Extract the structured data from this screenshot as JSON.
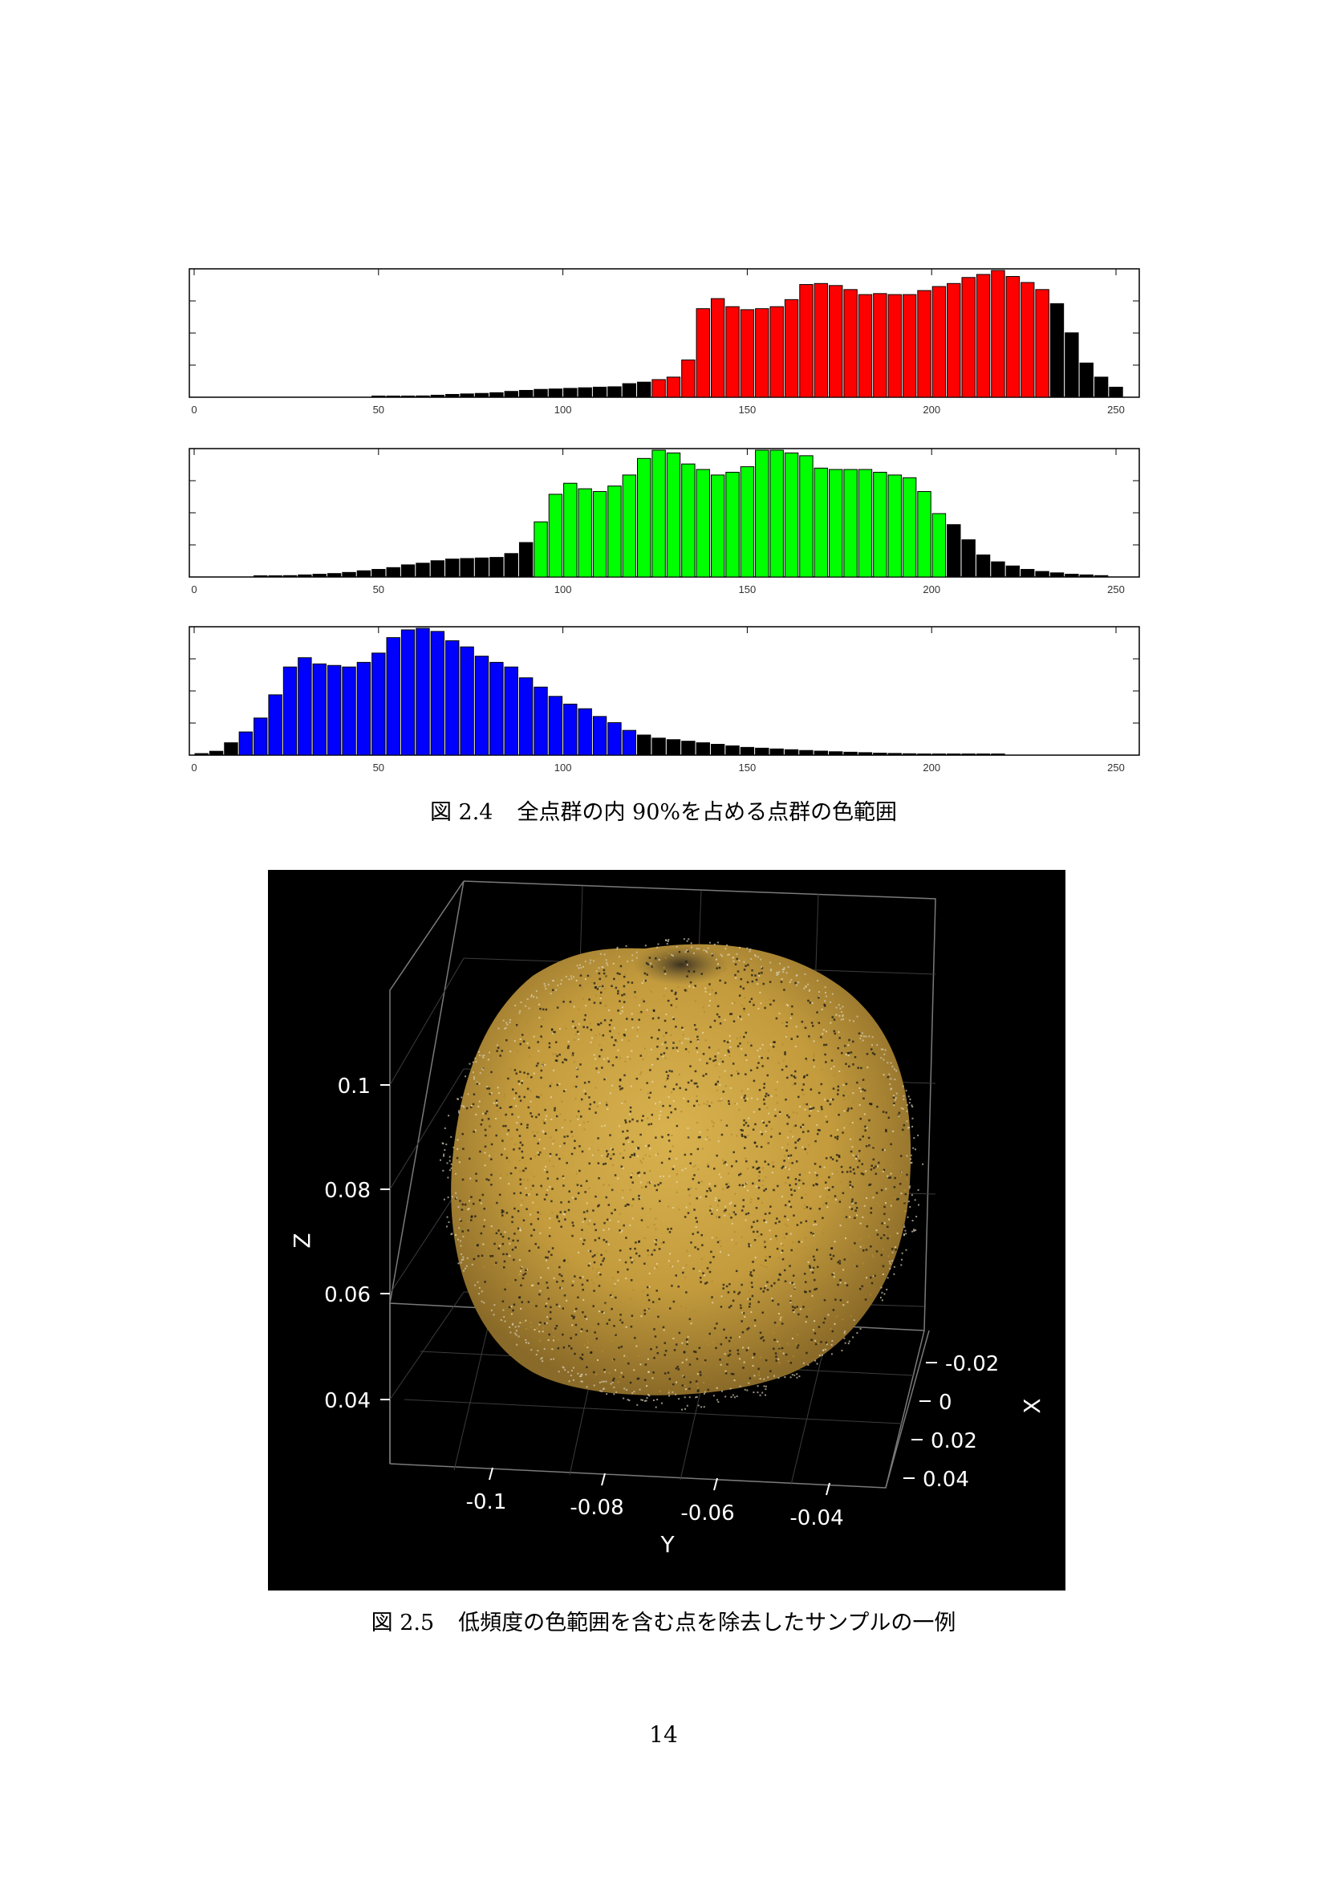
{
  "figure_2_4": {
    "caption_number": "図 2.4",
    "caption_text": "全点群の内 90%を占める点群の色範囲",
    "x_ticks": [
      "0",
      "50",
      "100",
      "150",
      "200",
      "250"
    ]
  },
  "figure_2_5": {
    "caption_number": "図 2.5",
    "caption_text": "低頻度の色範囲を含む点を除去したサンプルの一例",
    "axes": {
      "z_label": "Z",
      "z_ticks": [
        "0.1",
        "0.08",
        "0.06",
        "0.04"
      ],
      "y_label": "Y",
      "y_ticks": [
        "-0.1",
        "-0.08",
        "-0.06",
        "-0.04"
      ],
      "x_label": "X",
      "x_ticks": [
        "-0.02",
        "0",
        "0.02",
        "0.04"
      ]
    }
  },
  "page_number": "14",
  "colors": {
    "red": "#ff0000",
    "green": "#00ff00",
    "blue": "#0000ff",
    "outside": "#000000",
    "point_cloud": "#c9a246"
  },
  "chart_data": [
    {
      "type": "bar",
      "channel": "red",
      "title": "",
      "xlabel": "",
      "ylabel": "",
      "xlim": [
        0,
        255
      ],
      "bin_width": 4,
      "x": [
        0,
        4,
        8,
        12,
        16,
        20,
        24,
        28,
        32,
        36,
        40,
        44,
        48,
        52,
        56,
        60,
        64,
        68,
        72,
        76,
        80,
        84,
        88,
        92,
        96,
        100,
        104,
        108,
        112,
        116,
        120,
        124,
        128,
        132,
        136,
        140,
        144,
        148,
        152,
        156,
        160,
        164,
        168,
        172,
        176,
        180,
        184,
        188,
        192,
        196,
        200,
        204,
        208,
        212,
        216,
        220,
        224,
        228,
        232,
        236,
        240,
        244,
        248
      ],
      "values": [
        0,
        0,
        0,
        0,
        0,
        0,
        0,
        0,
        0,
        0,
        0,
        0,
        0.003,
        0.006,
        0.01,
        0.013,
        0.02,
        0.028,
        0.033,
        0.038,
        0.045,
        0.058,
        0.068,
        0.078,
        0.082,
        0.088,
        0.094,
        0.1,
        0.104,
        0.135,
        0.15,
        0.175,
        0.2,
        0.37,
        0.88,
        0.98,
        0.9,
        0.87,
        0.88,
        0.9,
        0.97,
        1.12,
        1.13,
        1.11,
        1.07,
        1.02,
        1.03,
        1.02,
        1.02,
        1.06,
        1.1,
        1.13,
        1.19,
        1.22,
        1.26,
        1.2,
        1.14,
        1.07,
        0.93,
        0.64,
        0.34,
        0.2,
        0.1
      ],
      "highlight_range": [
        123,
        231
      ],
      "ylim": [
        0,
        1.26
      ]
    },
    {
      "type": "bar",
      "channel": "green",
      "title": "",
      "xlabel": "",
      "ylabel": "",
      "xlim": [
        0,
        255
      ],
      "bin_width": 4,
      "x": [
        16,
        20,
        24,
        28,
        32,
        36,
        40,
        44,
        48,
        52,
        56,
        60,
        64,
        68,
        72,
        76,
        80,
        84,
        88,
        92,
        96,
        100,
        104,
        108,
        112,
        116,
        120,
        124,
        128,
        132,
        136,
        140,
        144,
        148,
        152,
        156,
        160,
        164,
        168,
        172,
        176,
        180,
        184,
        188,
        192,
        196,
        200,
        204,
        208,
        212,
        216,
        220,
        224,
        228,
        232,
        236,
        240,
        244
      ],
      "values": [
        0.003,
        0.006,
        0.01,
        0.015,
        0.02,
        0.025,
        0.033,
        0.045,
        0.055,
        0.068,
        0.088,
        0.1,
        0.118,
        0.13,
        0.134,
        0.138,
        0.142,
        0.17,
        0.25,
        0.4,
        0.6,
        0.68,
        0.64,
        0.62,
        0.66,
        0.74,
        0.86,
        0.92,
        0.9,
        0.82,
        0.78,
        0.74,
        0.76,
        0.8,
        0.92,
        0.92,
        0.9,
        0.88,
        0.79,
        0.78,
        0.78,
        0.78,
        0.76,
        0.74,
        0.72,
        0.62,
        0.46,
        0.38,
        0.27,
        0.16,
        0.11,
        0.08,
        0.055,
        0.04,
        0.03,
        0.02,
        0.015,
        0.01
      ],
      "highlight_range": [
        92,
        203
      ],
      "ylim": [
        0,
        0.92
      ]
    },
    {
      "type": "bar",
      "channel": "blue",
      "title": "",
      "xlabel": "",
      "ylabel": "",
      "xlim": [
        0,
        255
      ],
      "bin_width": 4,
      "x": [
        0,
        4,
        8,
        12,
        16,
        20,
        24,
        28,
        32,
        36,
        40,
        44,
        48,
        52,
        56,
        60,
        64,
        68,
        72,
        76,
        80,
        84,
        88,
        92,
        96,
        100,
        104,
        108,
        112,
        116,
        120,
        124,
        128,
        132,
        136,
        140,
        144,
        148,
        152,
        156,
        160,
        164,
        168,
        172,
        176,
        180,
        184,
        188,
        192,
        196,
        200,
        204,
        208,
        212,
        216,
        220,
        224,
        228,
        232,
        236,
        240,
        244,
        248,
        252
      ],
      "values": [
        0.01,
        0.025,
        0.08,
        0.15,
        0.24,
        0.39,
        0.57,
        0.63,
        0.59,
        0.58,
        0.57,
        0.6,
        0.66,
        0.76,
        0.81,
        0.82,
        0.8,
        0.74,
        0.7,
        0.64,
        0.6,
        0.57,
        0.5,
        0.44,
        0.38,
        0.33,
        0.3,
        0.25,
        0.21,
        0.16,
        0.13,
        0.11,
        0.1,
        0.09,
        0.08,
        0.07,
        0.06,
        0.05,
        0.045,
        0.04,
        0.035,
        0.03,
        0.026,
        0.022,
        0.019,
        0.016,
        0.013,
        0.011,
        0.009,
        0.007,
        0.005,
        0.004,
        0.003,
        0.002,
        0.001,
        0,
        0,
        0,
        0,
        0,
        0,
        0,
        0,
        0
      ],
      "highlight_range": [
        12,
        116
      ],
      "ylim": [
        0,
        0.82
      ]
    }
  ]
}
